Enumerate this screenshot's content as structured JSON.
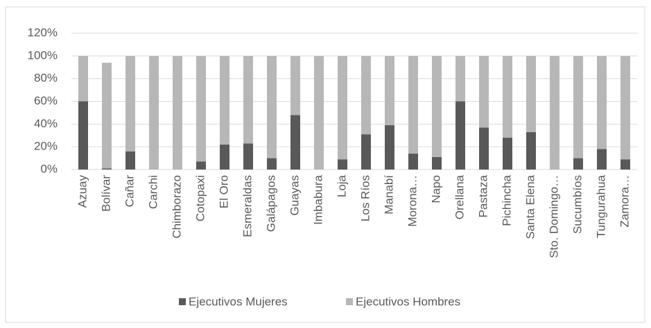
{
  "chart_data": {
    "type": "stacked_bar",
    "categories": [
      "Azuay",
      "Bolívar",
      "Cañar",
      "Carchi",
      "Chimborazo",
      "Cotopaxi",
      "El Oro",
      "Esmeraldas",
      "Galápagos",
      "Guayas",
      "Imbabura",
      "Loja",
      "Los Ríos",
      "Manabí",
      "Morona…",
      "Napo",
      "Orellana",
      "Pastaza",
      "Pichincha",
      "Santa Elena",
      "Sto. Domingo…",
      "Sucumbíos",
      "Tungurahua",
      "Zamora…"
    ],
    "series": [
      {
        "name": "Ejecutivos Mujeres",
        "color": "#595959",
        "values": [
          60,
          1,
          16,
          0,
          0,
          7,
          22,
          23,
          10,
          48,
          0,
          9,
          31,
          39,
          14,
          11,
          60,
          37,
          28,
          33,
          0,
          10,
          18,
          9
        ]
      },
      {
        "name": "Ejecutivos Hombres",
        "color": "#b7b7b7",
        "values": [
          40,
          93,
          84,
          100,
          100,
          93,
          78,
          77,
          90,
          52,
          100,
          91,
          69,
          61,
          86,
          89,
          40,
          63,
          72,
          67,
          100,
          90,
          82,
          91
        ]
      }
    ],
    "ylim": [
      0,
      120
    ],
    "yticks": [
      {
        "value": 0,
        "label": "0%"
      },
      {
        "value": 20,
        "label": "20%"
      },
      {
        "value": 40,
        "label": "40%"
      },
      {
        "value": 60,
        "label": "60%"
      },
      {
        "value": 80,
        "label": "80%"
      },
      {
        "value": 100,
        "label": "100%"
      },
      {
        "value": 120,
        "label": "120%"
      }
    ],
    "grid": true,
    "legend": "bottom"
  }
}
